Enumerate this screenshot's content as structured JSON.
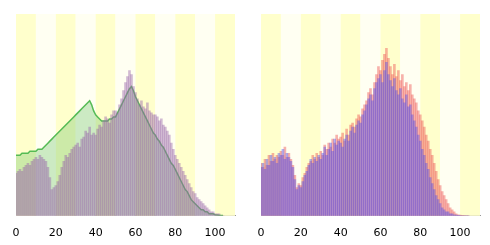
{
  "chart_data": [
    {
      "type": "bar",
      "tick_labels": "x",
      "grid": false,
      "x": [
        0,
        1,
        2,
        3,
        4,
        5,
        6,
        7,
        8,
        9,
        10,
        11,
        12,
        13,
        14,
        15,
        16,
        17,
        18,
        19,
        20,
        21,
        22,
        23,
        24,
        25,
        26,
        27,
        28,
        29,
        30,
        31,
        32,
        33,
        34,
        35,
        36,
        37,
        38,
        39,
        40,
        41,
        42,
        43,
        44,
        45,
        46,
        47,
        48,
        49,
        50,
        51,
        52,
        53,
        54,
        55,
        56,
        57,
        58,
        59,
        60,
        61,
        62,
        63,
        64,
        65,
        66,
        67,
        68,
        69,
        70,
        71,
        72,
        73,
        74,
        75,
        76,
        77,
        78,
        79,
        80,
        81,
        82,
        83,
        84,
        85,
        86,
        87,
        88,
        89,
        90,
        91,
        92,
        93,
        94,
        95,
        96,
        97,
        98,
        99,
        100,
        101,
        102,
        103,
        104
      ],
      "xlim": [
        0,
        110
      ],
      "xticks": [
        0,
        20,
        40,
        60,
        80,
        100
      ],
      "ylim": [
        0,
        100
      ],
      "series": [
        {
          "type": "bar",
          "color": "#9966aa",
          "values": [
            21,
            22,
            23,
            22,
            24,
            25,
            26,
            25,
            27,
            28,
            29,
            28,
            30,
            29,
            28,
            27,
            24,
            19,
            13,
            14,
            15,
            17,
            20,
            24,
            27,
            30,
            29,
            31,
            33,
            34,
            35,
            36,
            34,
            38,
            39,
            42,
            41,
            44,
            40,
            41,
            40,
            43,
            45,
            44,
            47,
            49,
            48,
            46,
            50,
            52,
            52,
            51,
            55,
            58,
            62,
            66,
            69,
            72,
            70,
            64,
            61,
            58,
            55,
            57,
            54,
            53,
            56,
            52,
            51,
            50,
            50,
            49,
            47,
            48,
            45,
            44,
            42,
            40,
            36,
            33,
            30,
            28,
            26,
            24,
            22,
            20,
            18,
            16,
            14,
            12,
            11,
            9,
            8,
            7,
            6,
            5,
            4,
            3,
            2,
            2,
            1,
            1,
            1,
            0,
            0
          ]
        },
        {
          "type": "line",
          "color": "#55bb55",
          "values": [
            30,
            30,
            30,
            31,
            31,
            31,
            31,
            32,
            32,
            32,
            32,
            33,
            33,
            33,
            34,
            35,
            36,
            37,
            38,
            39,
            40,
            41,
            42,
            43,
            44,
            45,
            46,
            47,
            48,
            49,
            50,
            51,
            52,
            53,
            54,
            55,
            56,
            57,
            55,
            52,
            50,
            49,
            48,
            47,
            47,
            47,
            47,
            48,
            48,
            49,
            49,
            51,
            53,
            55,
            57,
            59,
            61,
            63,
            64,
            62,
            59,
            57,
            55,
            53,
            51,
            49,
            47,
            45,
            43,
            41,
            40,
            38,
            37,
            35,
            34,
            32,
            30,
            28,
            26,
            25,
            23,
            21,
            19,
            17,
            15,
            13,
            12,
            10,
            8,
            7,
            6,
            5,
            4,
            3,
            3,
            2,
            2,
            1,
            1,
            1,
            0.5,
            0.4,
            0.3,
            0.2,
            0.1
          ]
        }
      ]
    },
    {
      "type": "bar",
      "tick_labels": "x",
      "grid": false,
      "x": [
        0,
        1,
        2,
        3,
        4,
        5,
        6,
        7,
        8,
        9,
        10,
        11,
        12,
        13,
        14,
        15,
        16,
        17,
        18,
        19,
        20,
        21,
        22,
        23,
        24,
        25,
        26,
        27,
        28,
        29,
        30,
        31,
        32,
        33,
        34,
        35,
        36,
        37,
        38,
        39,
        40,
        41,
        42,
        43,
        44,
        45,
        46,
        47,
        48,
        49,
        50,
        51,
        52,
        53,
        54,
        55,
        56,
        57,
        58,
        59,
        60,
        61,
        62,
        63,
        64,
        65,
        66,
        67,
        68,
        69,
        70,
        71,
        72,
        73,
        74,
        75,
        76,
        77,
        78,
        79,
        80,
        81,
        82,
        83,
        84,
        85,
        86,
        87,
        88,
        89,
        90,
        91,
        92,
        93,
        94,
        95,
        96,
        97,
        98,
        99,
        100,
        101,
        102,
        103,
        104
      ],
      "xlim": [
        0,
        110
      ],
      "xticks": [
        0,
        20,
        40,
        60,
        80,
        100
      ],
      "ylim": [
        0,
        100
      ],
      "series": [
        {
          "type": "bar",
          "color": "#5555ee",
          "values": [
            24,
            26,
            23,
            28,
            25,
            30,
            27,
            29,
            26,
            31,
            30,
            33,
            28,
            31,
            29,
            27,
            24,
            18,
            13,
            15,
            14,
            17,
            20,
            22,
            25,
            28,
            26,
            29,
            27,
            30,
            28,
            31,
            34,
            30,
            33,
            36,
            32,
            38,
            35,
            37,
            36,
            34,
            38,
            40,
            37,
            42,
            44,
            41,
            45,
            47,
            46,
            50,
            52,
            55,
            58,
            60,
            57,
            63,
            66,
            68,
            70,
            66,
            72,
            76,
            70,
            67,
            64,
            68,
            62,
            60,
            63,
            58,
            56,
            60,
            54,
            55,
            50,
            47,
            44,
            40,
            37,
            33,
            30,
            26,
            23,
            19,
            16,
            13,
            10,
            8,
            6,
            4,
            3,
            2,
            2,
            1,
            1,
            0.5,
            0.3,
            0.2,
            0.1,
            0,
            0,
            0,
            0
          ]
        },
        {
          "type": "bar",
          "color": "#ee5555",
          "values": [
            26,
            24,
            28,
            25,
            30,
            27,
            31,
            28,
            30,
            29,
            32,
            30,
            34,
            29,
            31,
            28,
            25,
            20,
            14,
            16,
            15,
            19,
            21,
            24,
            26,
            27,
            30,
            28,
            31,
            29,
            32,
            30,
            35,
            33,
            36,
            34,
            38,
            36,
            40,
            38,
            39,
            41,
            37,
            43,
            40,
            45,
            46,
            44,
            48,
            50,
            49,
            53,
            55,
            57,
            61,
            63,
            60,
            66,
            70,
            74,
            72,
            77,
            80,
            83,
            78,
            74,
            70,
            75,
            69,
            72,
            67,
            70,
            64,
            66,
            62,
            65,
            60,
            58,
            56,
            52,
            50,
            47,
            44,
            40,
            37,
            33,
            30,
            26,
            22,
            18,
            15,
            12,
            10,
            8,
            6,
            4,
            3,
            2,
            1,
            0.5,
            0.3,
            0.2,
            0.1,
            0,
            0
          ]
        }
      ]
    }
  ]
}
